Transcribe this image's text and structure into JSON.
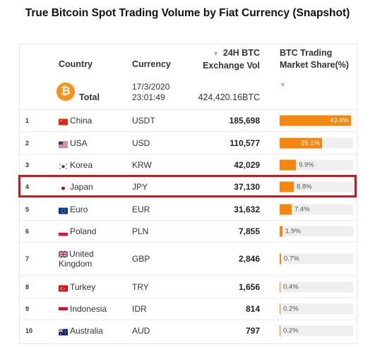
{
  "title": "True Bitcoin Spot Trading Volume by Fiat Currency (Snapshot)",
  "header": {
    "country": "Country",
    "currency": "Currency",
    "volume_line1": "24H BTC",
    "volume_line2": "Exchange Vol",
    "share_line1": "BTC Trading",
    "share_line2": "Market Share(%)",
    "sort_arrow": "▼"
  },
  "summary": {
    "icon_glyph": "₿",
    "total_label": "Total",
    "date": "17/3/2020",
    "time": "23:01:49",
    "total_volume": "424,420.16BTC",
    "share_arrow": "▼"
  },
  "highlight_color": "#d0141e",
  "accent_color": "#f5870f",
  "chart_data": {
    "type": "table",
    "title": "True Bitcoin Spot Trading Volume by Fiat Currency (Snapshot)",
    "columns": [
      "Country",
      "Currency",
      "24H BTC Exchange Vol",
      "BTC Trading Market Share(%)"
    ],
    "rows": [
      {
        "rank": "1",
        "country": "China",
        "flag": "cn-flag",
        "currency": "USDT",
        "volume": "185,698",
        "share": 43.8,
        "share_label": "43.8%"
      },
      {
        "rank": "2",
        "country": "USA",
        "flag": "us-flag",
        "currency": "USD",
        "volume": "110,577",
        "share": 26.1,
        "share_label": "26.1%"
      },
      {
        "rank": "3",
        "country": "Korea",
        "flag": "kr-flag",
        "currency": "KRW",
        "volume": "42,029",
        "share": 9.9,
        "share_label": "9.9%"
      },
      {
        "rank": "4",
        "country": "Japan",
        "flag": "jp-flag",
        "currency": "JPY",
        "volume": "37,130",
        "share": 8.8,
        "share_label": "8.8%"
      },
      {
        "rank": "5",
        "country": "Euro",
        "flag": "eu-flag",
        "currency": "EUR",
        "volume": "31,632",
        "share": 7.4,
        "share_label": "7.4%"
      },
      {
        "rank": "6",
        "country": "Poland",
        "flag": "pl-flag",
        "currency": "PLN",
        "volume": "7,855",
        "share": 1.9,
        "share_label": "1.9%"
      },
      {
        "rank": "7",
        "country": "United Kingdom",
        "flag": "gb-flag",
        "currency": "GBP",
        "volume": "2,846",
        "share": 0.7,
        "share_label": "0.7%"
      },
      {
        "rank": "8",
        "country": "Turkey",
        "flag": "tr-flag",
        "currency": "TRY",
        "volume": "1,656",
        "share": 0.4,
        "share_label": "0.4%"
      },
      {
        "rank": "9",
        "country": "Indonesia",
        "flag": "id-flag",
        "currency": "IDR",
        "volume": "814",
        "share": 0.2,
        "share_label": "0.2%"
      },
      {
        "rank": "10",
        "country": "Australia",
        "flag": "au-flag",
        "currency": "AUD",
        "volume": "797",
        "share": 0.2,
        "share_label": "0.2%"
      }
    ],
    "highlighted_row": "Japan"
  }
}
